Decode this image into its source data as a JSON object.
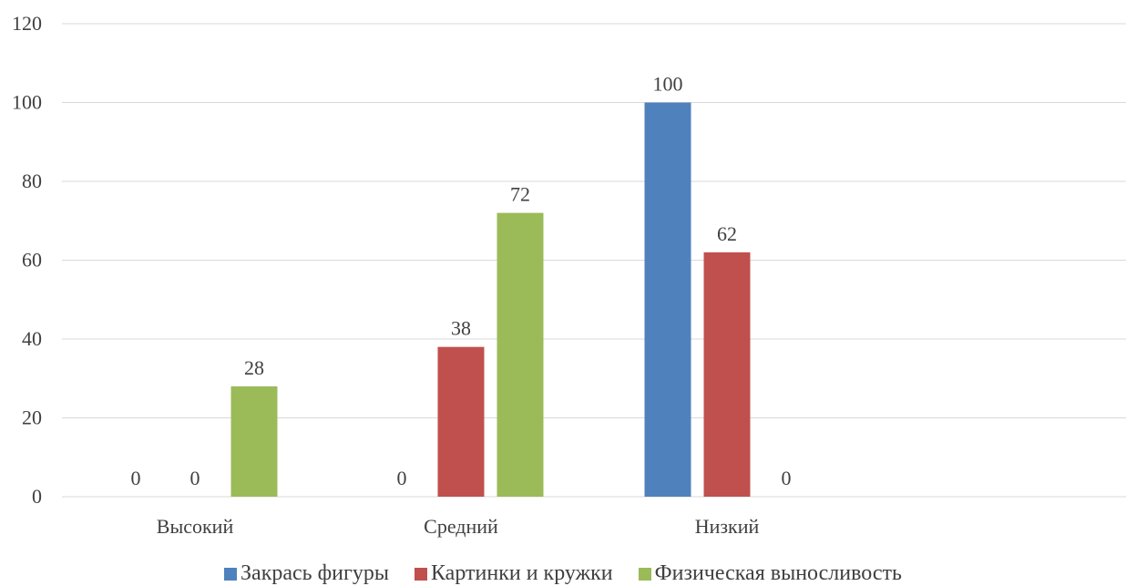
{
  "chart_data": {
    "type": "bar",
    "categories": [
      "Высокий",
      "Средний",
      "Низкий",
      ""
    ],
    "series": [
      {
        "name": "Закрась фигуры",
        "values": [
          0,
          0,
          100,
          null
        ],
        "color": "#4F81BD"
      },
      {
        "name": "Картинки и кружки",
        "values": [
          0,
          38,
          62,
          null
        ],
        "color": "#C0504D"
      },
      {
        "name": "Физическая выносливость",
        "values": [
          28,
          72,
          0,
          null
        ],
        "color": "#9BBB59"
      }
    ],
    "ylim": [
      0,
      120
    ],
    "yticks": [
      0,
      20,
      40,
      60,
      80,
      100,
      120
    ],
    "grid": true,
    "legend_position": "bottom",
    "data_labels": true,
    "title": "",
    "xlabel": "",
    "ylabel": ""
  }
}
